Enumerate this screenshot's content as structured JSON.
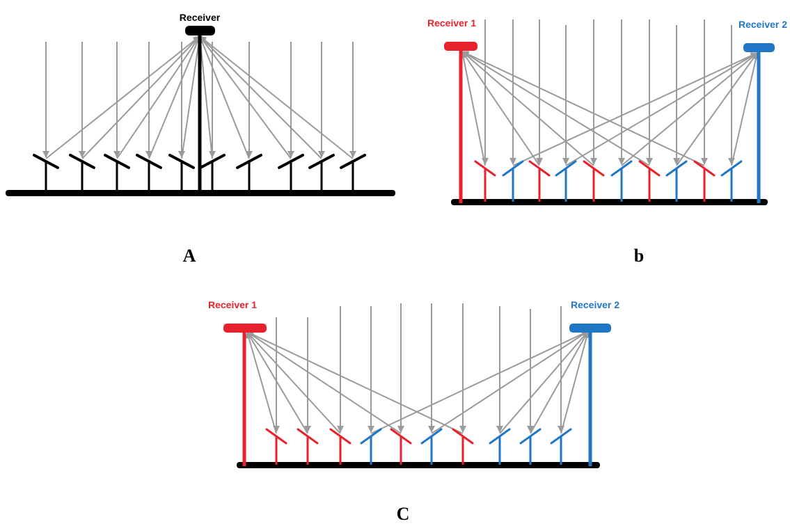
{
  "colors": {
    "neutral": "#000000",
    "receiver_1": "#e8222c",
    "receiver_2": "#1f77c6",
    "ray": "#9a9a9a"
  },
  "panels": [
    {
      "id": "A",
      "caption": "A",
      "receivers": [
        {
          "label": "Receiver",
          "color_key": "neutral"
        }
      ],
      "heliostat_assignment": [
        0,
        0,
        0,
        0,
        0,
        0,
        0,
        0,
        0,
        0
      ]
    },
    {
      "id": "b",
      "caption": "b",
      "receivers": [
        {
          "label": "Receiver 1",
          "color_key": "receiver_1"
        },
        {
          "label": "Receiver 2",
          "color_key": "receiver_2"
        }
      ],
      "heliostat_assignment": [
        0,
        1,
        0,
        1,
        0,
        1,
        0,
        1,
        0,
        1
      ]
    },
    {
      "id": "C",
      "caption": "C",
      "receivers": [
        {
          "label": "Receiver 1",
          "color_key": "receiver_1"
        },
        {
          "label": "Receiver 2",
          "color_key": "receiver_2"
        }
      ],
      "heliostat_assignment": [
        0,
        0,
        0,
        1,
        0,
        1,
        0,
        1,
        1,
        1
      ]
    }
  ]
}
